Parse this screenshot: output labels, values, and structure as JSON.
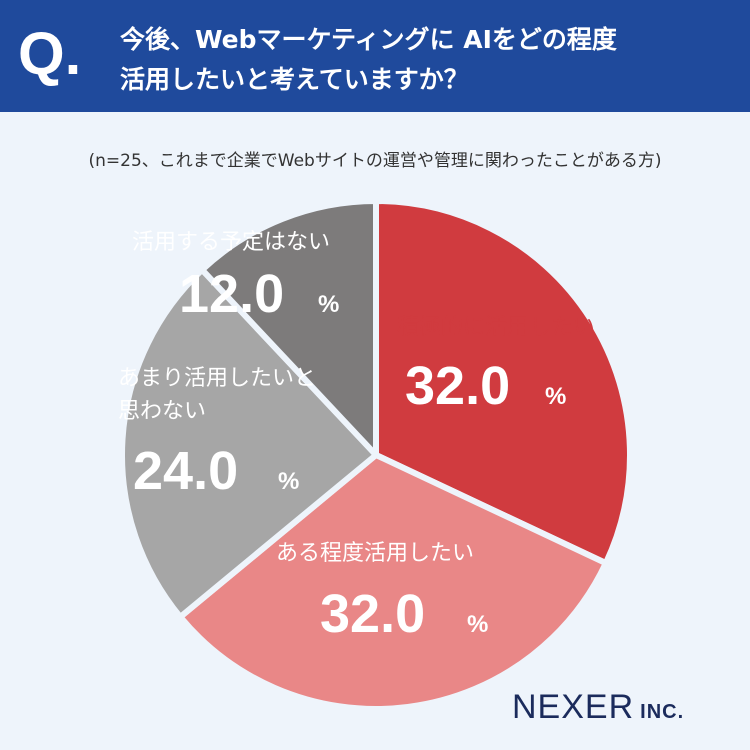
{
  "header": {
    "q_mark": "Q.",
    "question_line1": "今後、Webマーケティングに AIをどの程度",
    "question_line2": "活用したいと考えていますか？"
  },
  "sample_note": "(n=25、これまで企業でWebサイトの運営や管理に関わったことがある方)",
  "chart_data": {
    "type": "pie",
    "title": "今後、Webマーケティングに AIをどの程度活用したいと考えていますか？",
    "unit": "%",
    "slices": [
      {
        "label": "積極的に活用したい",
        "value": 32.0,
        "display": "32.0",
        "color": "#d03b3f"
      },
      {
        "label": "ある程度活用したい",
        "value": 32.0,
        "display": "32.0",
        "color": "#e98787"
      },
      {
        "label": "あまり活用したいと思わない",
        "value": 24.0,
        "display": "24.0",
        "color": "#a6a6a6"
      },
      {
        "label": "活用する予定はない",
        "value": 12.0,
        "display": "12.0",
        "color": "#7d7b7b"
      }
    ],
    "colors": {
      "highlight_label": "#d03b3f",
      "text": "#ffffff",
      "gap": "#eef4fb"
    }
  },
  "logo": {
    "main": "NEXER",
    "sub": "INC."
  }
}
